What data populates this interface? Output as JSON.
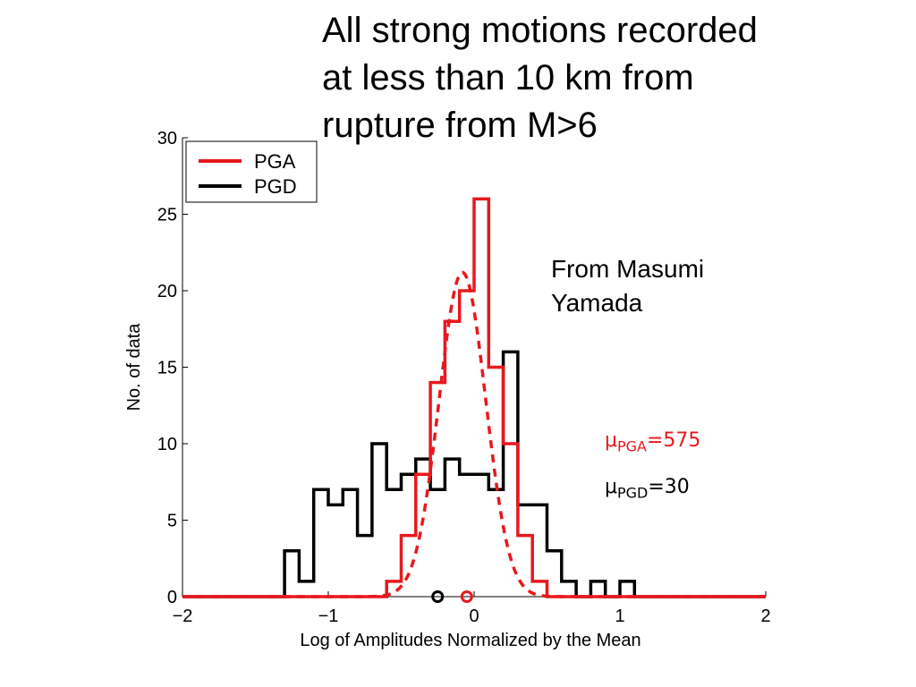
{
  "slide": {
    "title_lines": [
      "All strong motions recorded",
      "at less than 10 km from",
      "rupture from M>6"
    ],
    "credit_lines": [
      "From Masumi",
      "Yamada"
    ]
  },
  "annotations": {
    "pga": {
      "symbol": "μ",
      "sub": "PGA",
      "value": "=575",
      "color": "#e8181e"
    },
    "pgd": {
      "symbol": "μ",
      "sub": "PGD",
      "value": "=30",
      "color": "#000000"
    }
  },
  "chart_data": {
    "type": "step-histogram",
    "xlabel": "Log of Amplitudes Normalized by the Mean",
    "ylabel": "No. of data",
    "xlim": [
      -2,
      2
    ],
    "ylim": [
      0,
      30
    ],
    "xticks": [
      -2,
      -1,
      0,
      1,
      2
    ],
    "xtick_labels": [
      "−2",
      "−1",
      "0",
      "1",
      "2"
    ],
    "yticks": [
      0,
      5,
      10,
      15,
      20,
      25,
      30
    ],
    "legend": {
      "placement": "top-left",
      "entries": [
        "PGA",
        "PGD"
      ]
    },
    "bin_edges": [
      -2.0,
      -1.9,
      -1.8,
      -1.7,
      -1.6,
      -1.5,
      -1.4,
      -1.3,
      -1.2,
      -1.1,
      -1.0,
      -0.9,
      -0.8,
      -0.7,
      -0.6,
      -0.5,
      -0.4,
      -0.3,
      -0.2,
      -0.1,
      0.0,
      0.1,
      0.2,
      0.3,
      0.4,
      0.5,
      0.6,
      0.7,
      0.8,
      0.9,
      1.0,
      1.1,
      1.2,
      1.3,
      1.4,
      1.5,
      1.6,
      1.7,
      1.8,
      1.9,
      2.0
    ],
    "series": [
      {
        "name": "PGA",
        "color": "#e8181e",
        "counts": [
          0,
          0,
          0,
          0,
          0,
          0,
          0,
          0,
          0,
          0,
          0,
          0,
          0,
          0,
          1,
          4,
          8,
          14,
          18,
          20,
          26,
          15,
          10,
          4,
          1,
          0,
          0,
          0,
          0,
          0,
          0,
          0,
          0,
          0,
          0,
          0,
          0,
          0,
          0,
          0
        ],
        "mean_marker": -0.05
      },
      {
        "name": "PGD",
        "color": "#000000",
        "counts": [
          0,
          0,
          0,
          0,
          0,
          0,
          0,
          3,
          1,
          7,
          6,
          7,
          4,
          10,
          7,
          8,
          9,
          7,
          9,
          8,
          8,
          7,
          16,
          6,
          6,
          3,
          1,
          0,
          1,
          0,
          1,
          0,
          0,
          0,
          0,
          0,
          0,
          0,
          0,
          0
        ],
        "mean_marker": -0.25
      }
    ],
    "fit_curve": {
      "series": "PGA",
      "style": "dashed",
      "mean": -0.08,
      "sigma": 0.16,
      "peak": 21.2
    }
  }
}
